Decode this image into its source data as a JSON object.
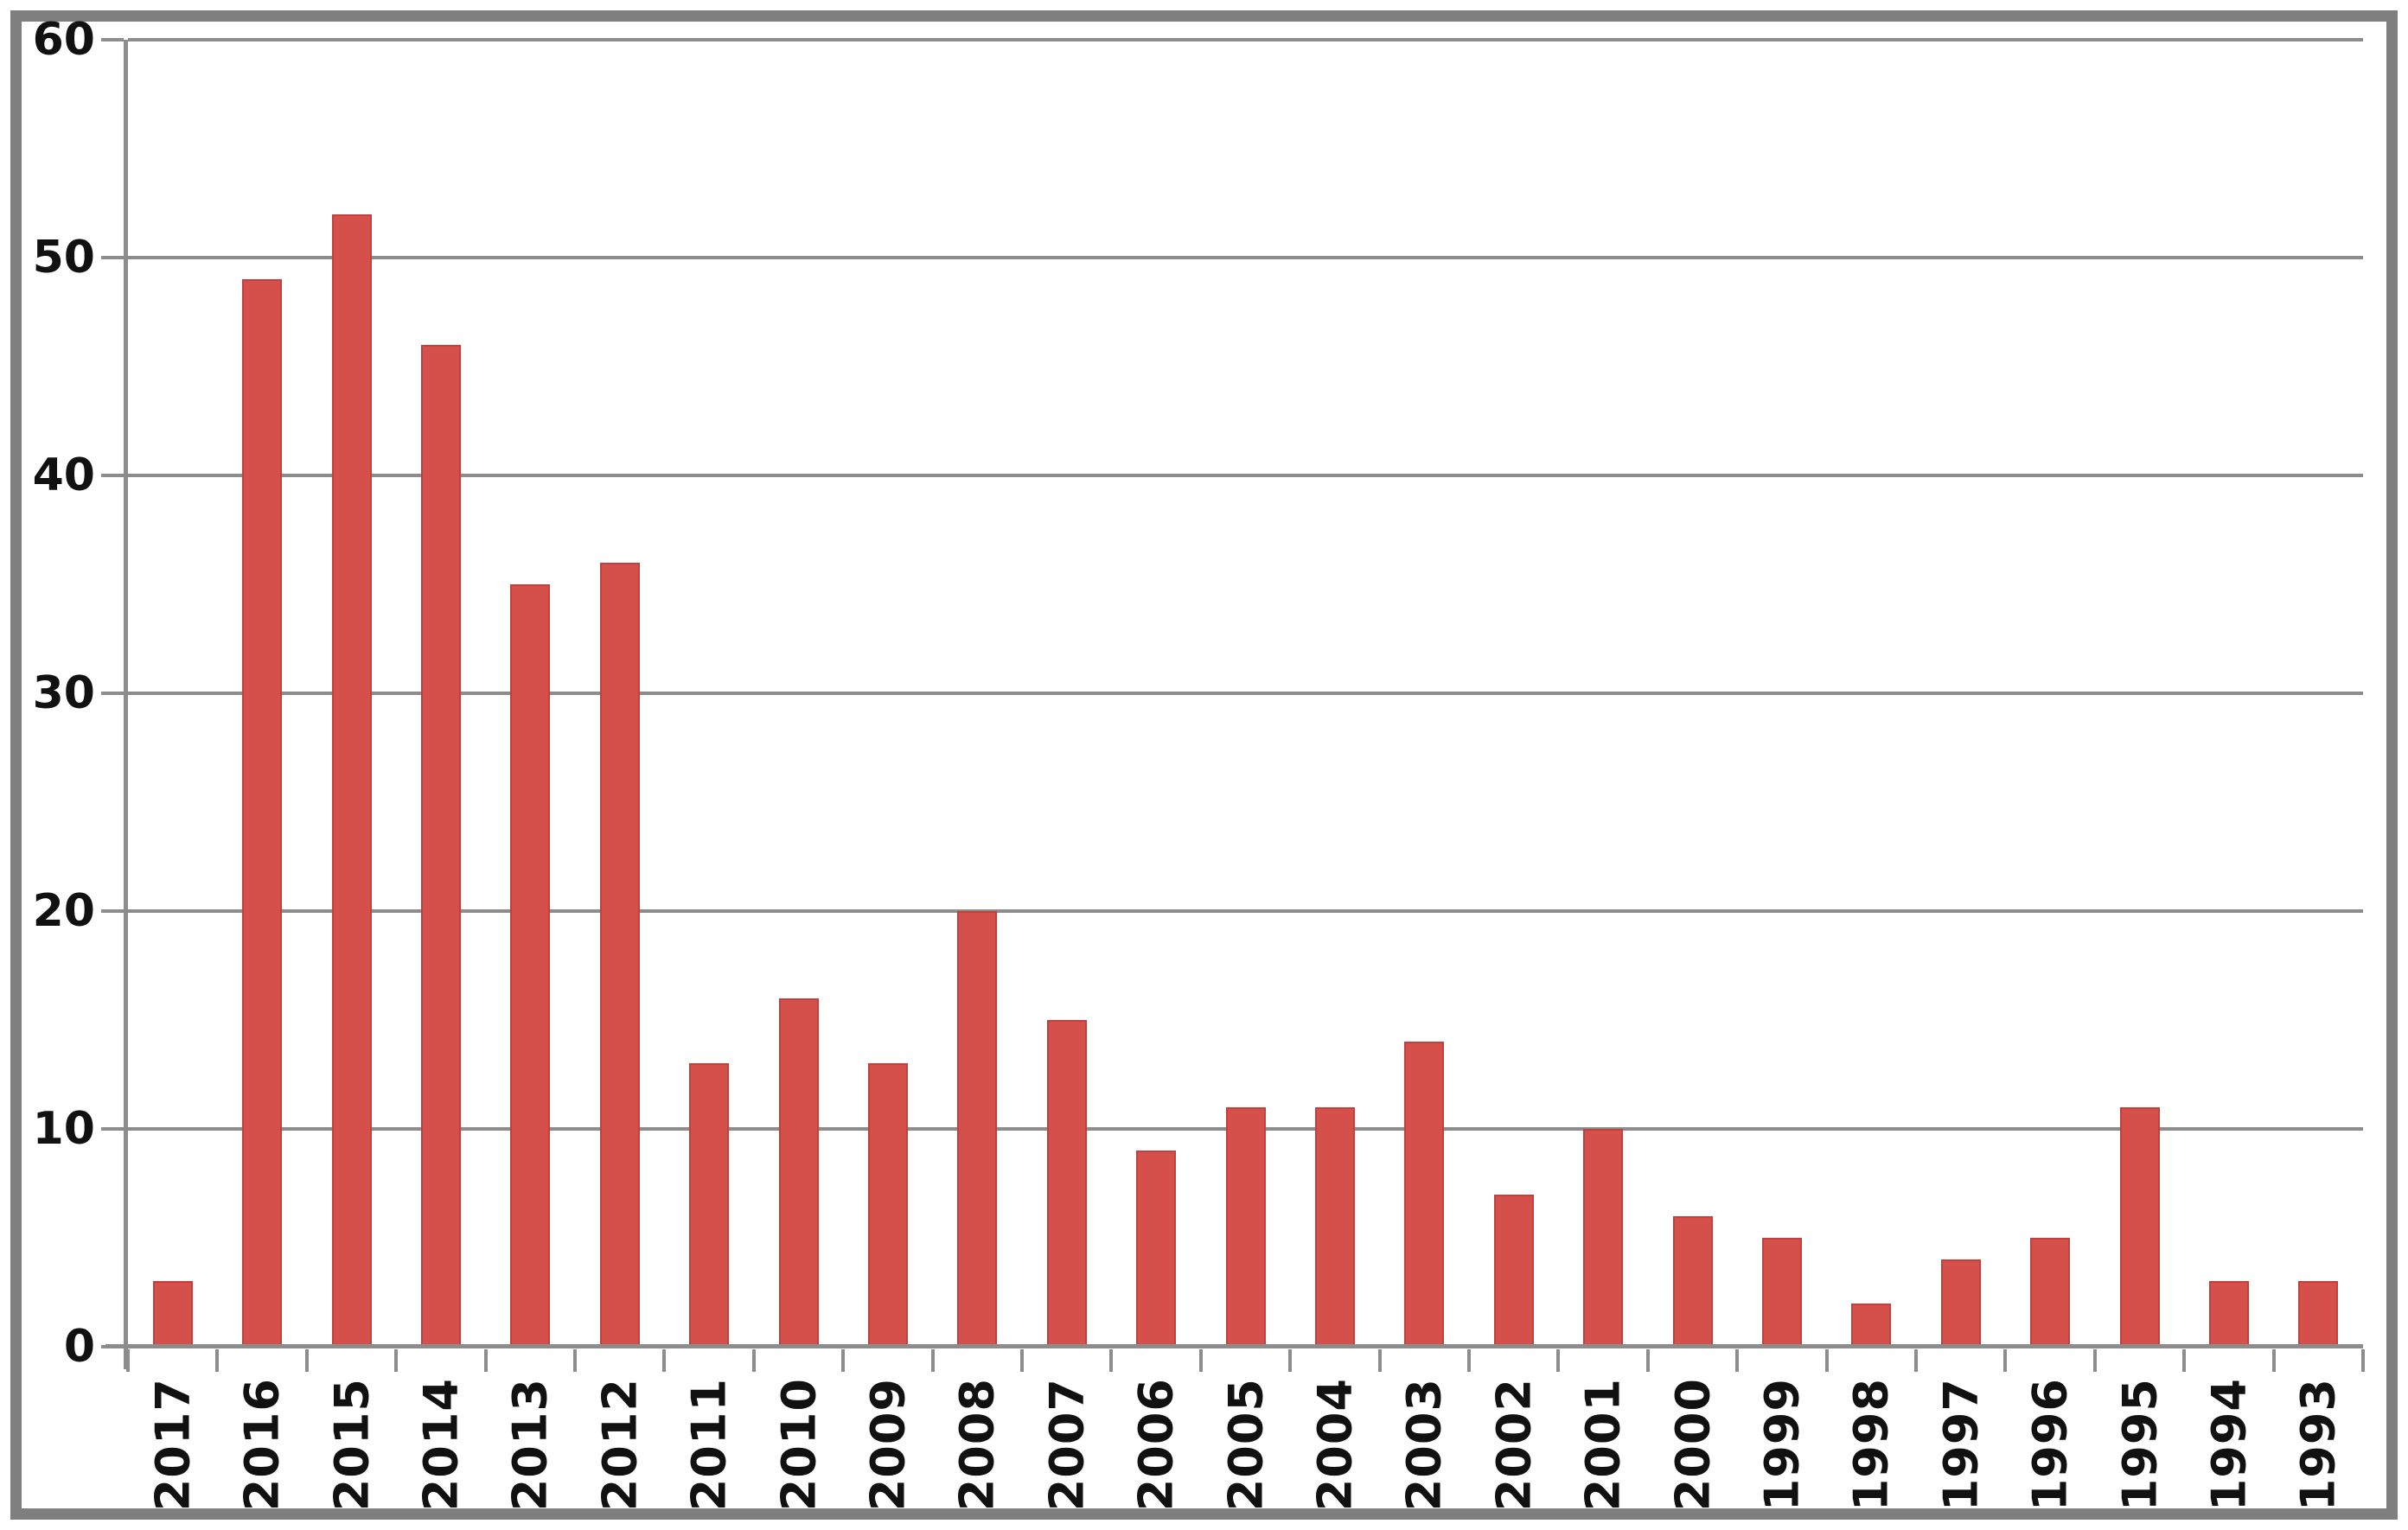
{
  "chart_data": {
    "type": "bar",
    "categories": [
      "2017",
      "2016",
      "2015",
      "2014",
      "2013",
      "2012",
      "2011",
      "2010",
      "2009",
      "2008",
      "2007",
      "2006",
      "2005",
      "2004",
      "2003",
      "2002",
      "2001",
      "2000",
      "1999",
      "1998",
      "1997",
      "1996",
      "1995",
      "1994",
      "1993"
    ],
    "values": [
      3,
      49,
      52,
      46,
      35,
      36,
      13,
      16,
      13,
      20,
      15,
      9,
      11,
      11,
      14,
      7,
      10,
      6,
      5,
      2,
      4,
      5,
      11,
      3,
      3
    ],
    "title": "",
    "xlabel": "",
    "ylabel": "",
    "ylim": [
      0,
      60
    ],
    "yticks": [
      0,
      10,
      20,
      30,
      40,
      50,
      60
    ],
    "grid": true,
    "legend": false,
    "colors": {
      "bar_fill": "#d5504b",
      "bar_border": "#c0413d",
      "gridline": "#8c8c8c",
      "axis": "#8c8c8c",
      "frame": "#7f7f7f",
      "label_text": "#111111",
      "background": "#ffffff"
    }
  }
}
